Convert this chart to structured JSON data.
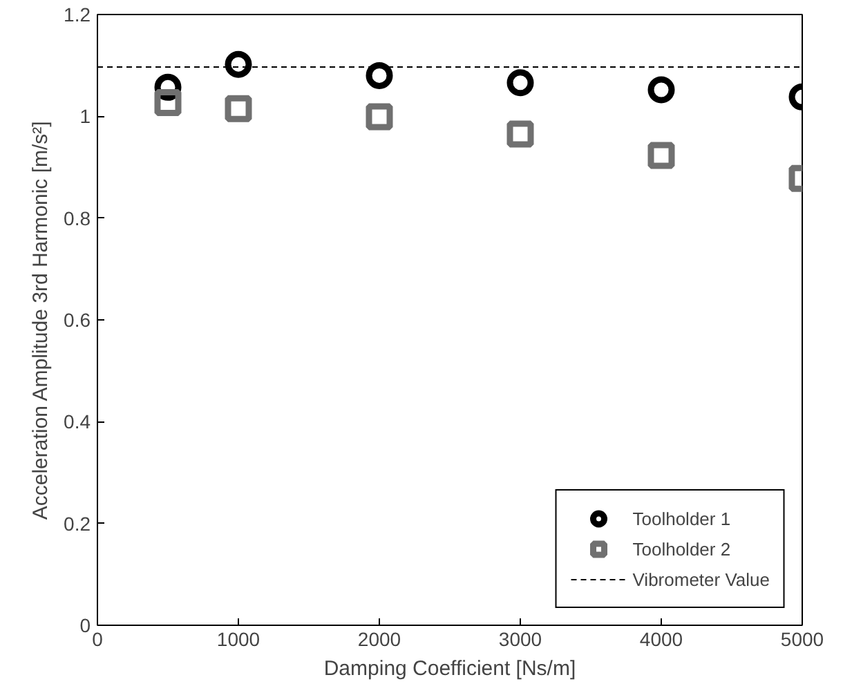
{
  "chart_data": {
    "type": "scatter",
    "xlabel": "Damping Coefficient [Ns/m]",
    "ylabel": "Acceleration Amplitude 3rd Harmonic [m/s²]",
    "x": [
      500,
      1000,
      2000,
      3000,
      4000,
      5000
    ],
    "series": [
      {
        "name": "Toolholder 1",
        "color": "#000000",
        "marker": "circle",
        "values": [
          1.057,
          1.102,
          1.08,
          1.066,
          1.052,
          1.038
        ]
      },
      {
        "name": "Toolholder 2",
        "color": "#707070",
        "marker": "square",
        "values": [
          1.027,
          1.015,
          0.999,
          0.965,
          0.923,
          0.878
        ]
      }
    ],
    "ref_lines": [
      {
        "axis": "y",
        "value": 1.097,
        "label": "Vibrometer Value",
        "color": "#000000",
        "line_style": "dashed"
      }
    ],
    "xlim": [
      0,
      5000
    ],
    "ylim": [
      0,
      1.2
    ],
    "xticks": [
      0,
      1000,
      2000,
      3000,
      4000,
      5000
    ],
    "yticks": [
      0,
      0.2,
      0.4,
      0.6,
      0.8,
      1,
      1.2
    ],
    "grid": false,
    "legend": "bottom right"
  }
}
